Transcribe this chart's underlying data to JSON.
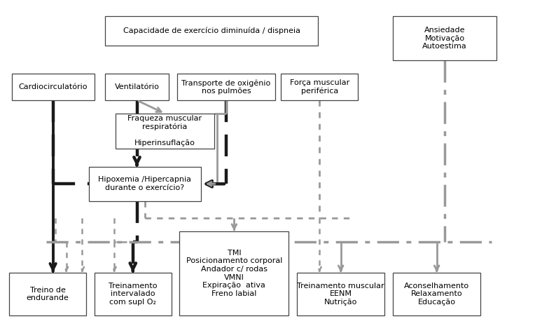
{
  "bg": "#ffffff",
  "black": "#1a1a1a",
  "gray": "#999999",
  "boxes": {
    "cap": [
      0.195,
      0.865,
      0.4,
      0.09,
      "Capacidade de exercício diminuída / dispneia"
    ],
    "ans": [
      0.735,
      0.82,
      0.195,
      0.135,
      "Ansiedade\nMotivação\nAutoestima"
    ],
    "cardio": [
      0.02,
      0.7,
      0.155,
      0.08,
      "Cardiocirculatório"
    ],
    "vent": [
      0.195,
      0.7,
      0.12,
      0.08,
      "Ventilatório"
    ],
    "trans": [
      0.33,
      0.7,
      0.185,
      0.08,
      "Transporte de oxigênio\nnos pulmões"
    ],
    "forca": [
      0.525,
      0.7,
      0.145,
      0.08,
      "Força muscular\nperiférica"
    ],
    "fraq": [
      0.215,
      0.555,
      0.185,
      0.105,
      "Fraqueza muscular\nrespiratória\n\nHiperinsuflação"
    ],
    "hipox": [
      0.165,
      0.395,
      0.21,
      0.105,
      "Hipoxemia /Hipercapnia\ndurante o exercício?"
    ],
    "te": [
      0.015,
      0.05,
      0.145,
      0.13,
      "Treino de\nendurande"
    ],
    "ti": [
      0.175,
      0.05,
      0.145,
      0.13,
      "Treinamento\nintervalado\ncom supl O₂"
    ],
    "tmi": [
      0.335,
      0.05,
      0.205,
      0.255,
      "TMI\nPosicionamento corporal\nAndador c/ rodas\nVMNI\nExpiração  ativa\nFreno labial"
    ],
    "tm": [
      0.555,
      0.05,
      0.165,
      0.13,
      "Treinamento muscular\nEENM\nNutrição"
    ],
    "ac": [
      0.735,
      0.05,
      0.165,
      0.13,
      "Aconselhamento\nRelaxamento\nEducação"
    ]
  },
  "fontsize": 8.0
}
